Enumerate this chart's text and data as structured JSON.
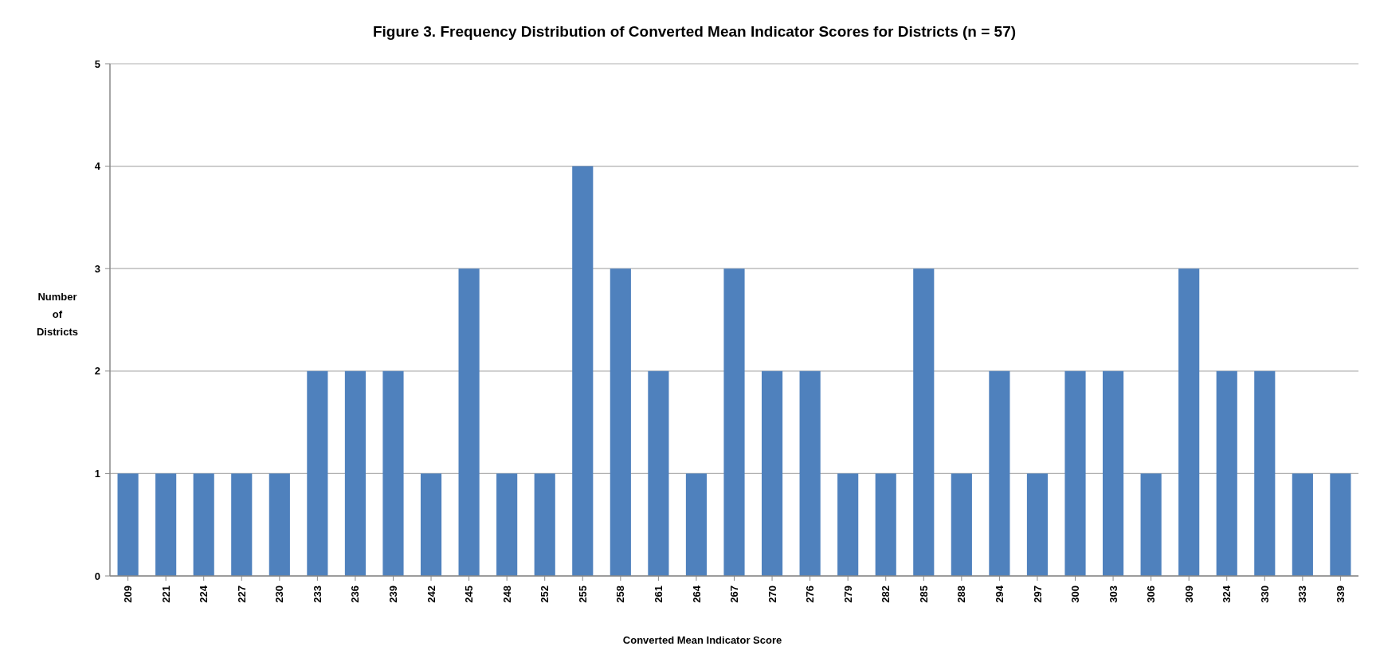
{
  "chart_data": {
    "type": "bar",
    "title": "Figure 3. Frequency Distribution of Converted Mean Indicator Scores for Districts (n = 57)",
    "xlabel": "Converted Mean Indicator Score",
    "ylabel": "Number of Districts",
    "categories": [
      "209",
      "221",
      "224",
      "227",
      "230",
      "233",
      "236",
      "239",
      "242",
      "245",
      "248",
      "252",
      "255",
      "258",
      "261",
      "264",
      "267",
      "270",
      "276",
      "279",
      "282",
      "285",
      "288",
      "294",
      "297",
      "300",
      "303",
      "306",
      "309",
      "324",
      "330",
      "333",
      "339"
    ],
    "values": [
      1,
      1,
      1,
      1,
      1,
      2,
      2,
      2,
      1,
      3,
      1,
      1,
      4,
      3,
      2,
      1,
      3,
      2,
      2,
      1,
      1,
      3,
      1,
      2,
      1,
      2,
      2,
      1,
      3,
      2,
      2,
      1,
      1
    ],
    "color": "#4f81bd",
    "ylim": [
      0,
      5
    ],
    "yticks": [
      0,
      1,
      2,
      3,
      4,
      5
    ],
    "grid": "y"
  }
}
